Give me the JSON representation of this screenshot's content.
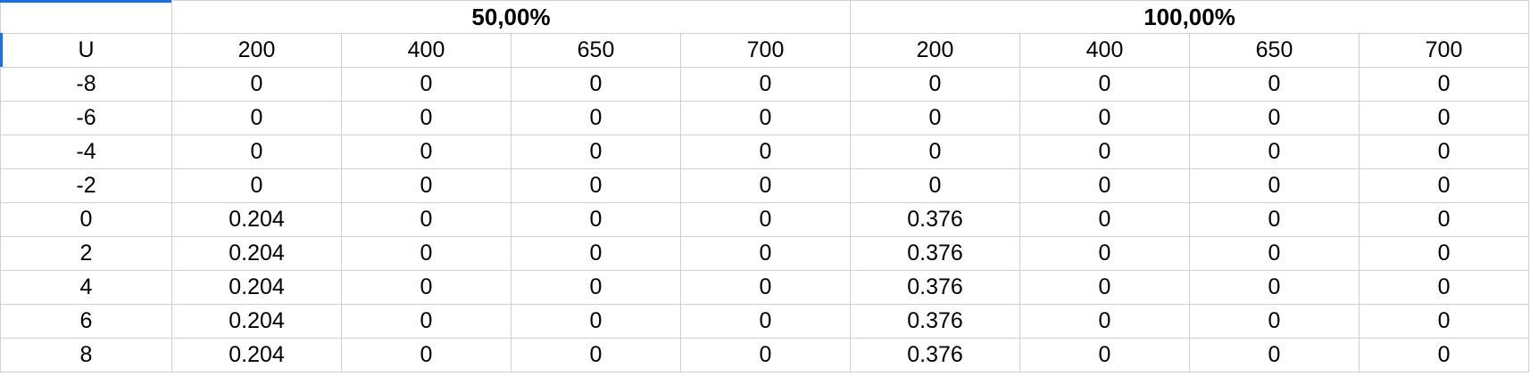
{
  "group_headers": [
    "50,00%",
    "100,00%"
  ],
  "column_headers": [
    "U",
    "200",
    "400",
    "650",
    "700",
    "200",
    "400",
    "650",
    "700"
  ],
  "rows": [
    [
      "-8",
      "0",
      "0",
      "0",
      "0",
      "0",
      "0",
      "0",
      "0"
    ],
    [
      "-6",
      "0",
      "0",
      "0",
      "0",
      "0",
      "0",
      "0",
      "0"
    ],
    [
      "-4",
      "0",
      "0",
      "0",
      "0",
      "0",
      "0",
      "0",
      "0"
    ],
    [
      "-2",
      "0",
      "0",
      "0",
      "0",
      "0",
      "0",
      "0",
      "0"
    ],
    [
      "0",
      "0.204",
      "0",
      "0",
      "0",
      "0.376",
      "0",
      "0",
      "0"
    ],
    [
      "2",
      "0.204",
      "0",
      "0",
      "0",
      "0.376",
      "0",
      "0",
      "0"
    ],
    [
      "4",
      "0.204",
      "0",
      "0",
      "0",
      "0.376",
      "0",
      "0",
      "0"
    ],
    [
      "6",
      "0.204",
      "0",
      "0",
      "0",
      "0.376",
      "0",
      "0",
      "0"
    ],
    [
      "8",
      "0.204",
      "0",
      "0",
      "0",
      "0.376",
      "0",
      "0",
      "0"
    ]
  ],
  "colors": {
    "grid": "#d0d0d0",
    "selection": "#1e6fd9"
  }
}
